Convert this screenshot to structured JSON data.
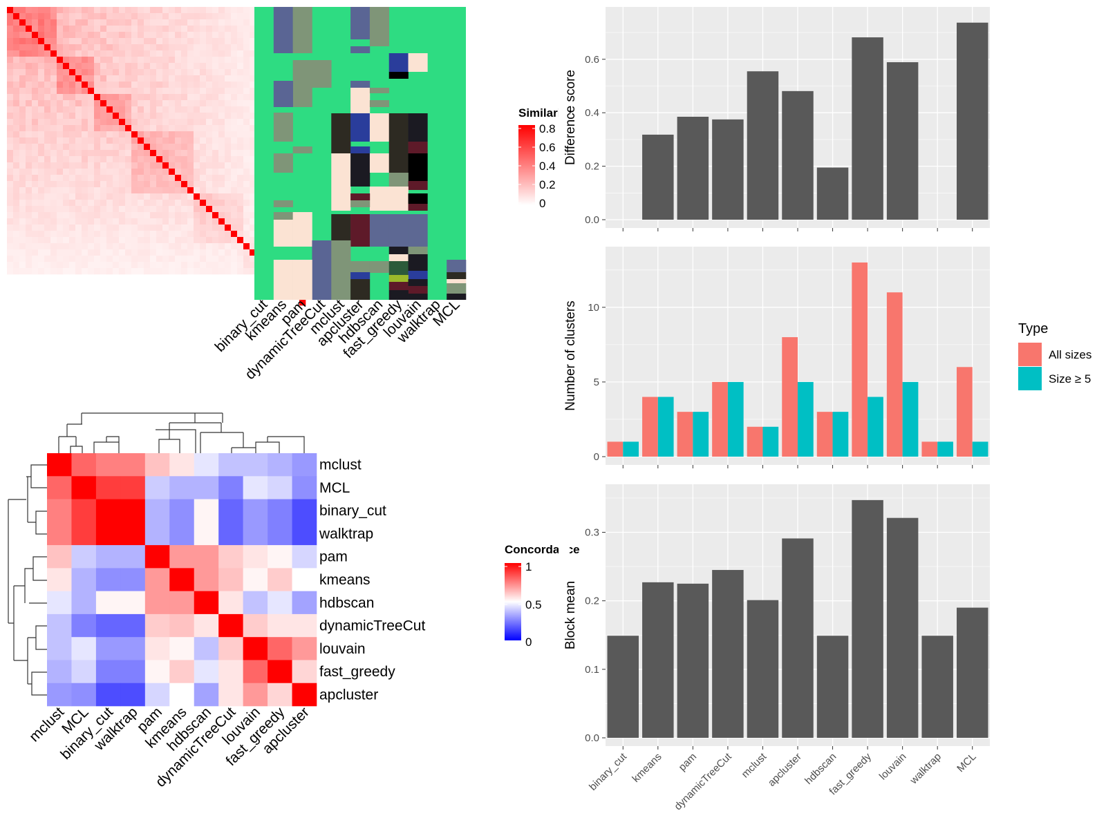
{
  "methods": [
    "binary_cut",
    "kmeans",
    "pam",
    "dynamicTreeCut",
    "mclust",
    "apcluster",
    "hdbscan",
    "fast_greedy",
    "louvain",
    "walktrap",
    "MCL"
  ],
  "similarity_legend": {
    "title": "Similarity",
    "ticks": [
      "0.8",
      "0.6",
      "0.4",
      "0.2",
      "0"
    ]
  },
  "concordance_legend": {
    "title": "Concordance",
    "ticks": [
      "1",
      "0.5",
      "0"
    ]
  },
  "colors": {
    "panel_bg": "#EBEBEB",
    "grid": "#FFFFFF",
    "bar": "#595959",
    "all_sizes": "#F8766D",
    "size_ge5": "#00BFC4",
    "sim_high": "#FF0000",
    "conc_high": "#FF0000",
    "conc_mid": "#FFFFFF",
    "conc_low": "#0000FF",
    "membership_bg": "#2EDC82"
  },
  "chart_data": [
    {
      "type": "bar",
      "categories": [
        "binary_cut",
        "kmeans",
        "pam",
        "dynamicTreeCut",
        "mclust",
        "apcluster",
        "hdbscan",
        "fast_greedy",
        "louvain",
        "walktrap",
        "MCL"
      ],
      "values": [
        0,
        0.318,
        0.385,
        0.375,
        0.555,
        0.481,
        0.195,
        0.682,
        0.589,
        0,
        0.737
      ],
      "xlabel": "",
      "ylabel": "Difference score",
      "ylim": [
        0,
        0.77
      ],
      "yticks": [
        "0.0",
        "0.2",
        "0.4",
        "0.6"
      ],
      "grid": true
    },
    {
      "type": "bar",
      "categories": [
        "binary_cut",
        "kmeans",
        "pam",
        "dynamicTreeCut",
        "mclust",
        "apcluster",
        "hdbscan",
        "fast_greedy",
        "louvain",
        "walktrap",
        "MCL"
      ],
      "series": [
        {
          "name": "All sizes",
          "values": [
            1,
            4,
            3,
            5,
            2,
            8,
            3,
            13,
            11,
            1,
            6
          ]
        },
        {
          "name": "Size ≥ 5",
          "values": [
            1,
            4,
            3,
            5,
            2,
            5,
            3,
            4,
            5,
            1,
            1
          ]
        }
      ],
      "ylabel": "Number of clusters",
      "ylim": [
        0,
        13.6
      ],
      "yticks": [
        "0",
        "5",
        "10"
      ],
      "legend": {
        "title": "Type",
        "placement": "right"
      },
      "grid": true
    },
    {
      "type": "bar",
      "categories": [
        "binary_cut",
        "kmeans",
        "pam",
        "dynamicTreeCut",
        "mclust",
        "apcluster",
        "hdbscan",
        "fast_greedy",
        "louvain",
        "walktrap",
        "MCL"
      ],
      "values": [
        0.149,
        0.227,
        0.225,
        0.245,
        0.201,
        0.291,
        0.149,
        0.347,
        0.321,
        0.149,
        0.19
      ],
      "ylabel": "Block mean",
      "ylim": [
        0,
        0.36
      ],
      "yticks": [
        "0.0",
        "0.1",
        "0.2",
        "0.3"
      ],
      "grid": true
    },
    {
      "type": "heatmap",
      "rows": [
        "mclust",
        "MCL",
        "binary_cut",
        "walktrap",
        "pam",
        "kmeans",
        "hdbscan",
        "dynamicTreeCut",
        "louvain",
        "fast_greedy",
        "apcluster"
      ],
      "cols": [
        "mclust",
        "MCL",
        "binary_cut",
        "walktrap",
        "pam",
        "kmeans",
        "hdbscan",
        "dynamicTreeCut",
        "louvain",
        "fast_greedy",
        "apcluster"
      ],
      "values": [
        [
          1.0,
          0.8,
          0.75,
          0.75,
          0.62,
          0.55,
          0.45,
          0.38,
          0.38,
          0.35,
          0.3
        ],
        [
          0.8,
          1.0,
          0.88,
          0.88,
          0.4,
          0.35,
          0.35,
          0.25,
          0.45,
          0.42,
          0.28
        ],
        [
          0.75,
          0.88,
          1.0,
          1.0,
          0.35,
          0.28,
          0.52,
          0.2,
          0.3,
          0.25,
          0.15
        ],
        [
          0.75,
          0.88,
          1.0,
          1.0,
          0.35,
          0.28,
          0.52,
          0.2,
          0.3,
          0.25,
          0.15
        ],
        [
          0.62,
          0.4,
          0.35,
          0.35,
          1.0,
          0.7,
          0.7,
          0.6,
          0.55,
          0.52,
          0.42
        ],
        [
          0.55,
          0.35,
          0.28,
          0.28,
          0.7,
          1.0,
          0.7,
          0.62,
          0.52,
          0.6,
          0.5
        ],
        [
          0.45,
          0.35,
          0.52,
          0.52,
          0.7,
          0.7,
          1.0,
          0.55,
          0.38,
          0.45,
          0.32
        ],
        [
          0.38,
          0.25,
          0.2,
          0.2,
          0.6,
          0.62,
          0.55,
          1.0,
          0.6,
          0.55,
          0.55
        ],
        [
          0.38,
          0.45,
          0.3,
          0.3,
          0.55,
          0.52,
          0.38,
          0.6,
          1.0,
          0.8,
          0.7
        ],
        [
          0.35,
          0.42,
          0.25,
          0.25,
          0.52,
          0.6,
          0.45,
          0.55,
          0.8,
          1.0,
          0.58
        ],
        [
          0.3,
          0.28,
          0.15,
          0.15,
          0.42,
          0.5,
          0.32,
          0.55,
          0.7,
          0.58,
          1.0
        ]
      ]
    }
  ]
}
